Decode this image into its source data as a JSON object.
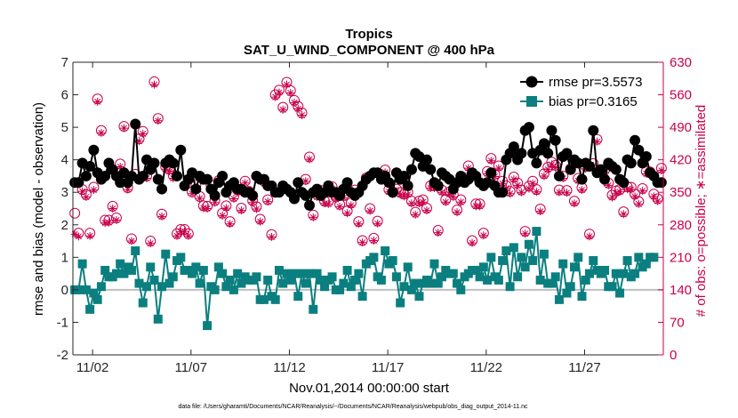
{
  "chart_data": {
    "type": "line",
    "title": "Tropics",
    "subtitle": "SAT_U_WIND_COMPONENT @ 400 hPa",
    "xlabel": "Nov.01,2014 00:00:00 start",
    "ylabel_left": "rmse and bias (model - observation)",
    "ylabel_right": "# of obs: o=possible; ∗=assimilated",
    "footnote": "data file: /Users/gharamti/Documents/NCAR/Reanalysis/~/Documents/NCAR/Reanalysis/webpub/obs_diag_output_2014-11.nc",
    "xlim": [
      1,
      31
    ],
    "ylim_left": [
      -2,
      7
    ],
    "ylim_right": [
      0,
      630
    ],
    "x_ticks": [
      2,
      7,
      12,
      17,
      22,
      27
    ],
    "x_tick_labels": [
      "11/02",
      "11/07",
      "11/12",
      "11/17",
      "11/22",
      "11/27"
    ],
    "y_ticks_left": [
      -2,
      -1,
      0,
      1,
      2,
      3,
      4,
      5,
      6,
      7
    ],
    "y_ticks_right": [
      0,
      70,
      140,
      210,
      280,
      350,
      420,
      490,
      560,
      630
    ],
    "grid": false,
    "legend_position": "top-right",
    "colors": {
      "rmse": "#000000",
      "bias": "#0b7f7f",
      "obs": "#c8004a",
      "zero_line": "#bfbfbf"
    },
    "series": [
      {
        "name": "rmse pr=3.5573",
        "marker": "circle",
        "axis": "left",
        "values": [
          3.3,
          3.3,
          3.9,
          3.5,
          3.8,
          4.3,
          3.6,
          3.4,
          3.5,
          3.9,
          3.7,
          3.5,
          3.3,
          3.6,
          3.3,
          3.5,
          5.1,
          3.4,
          3.5,
          4.0,
          3.7,
          3.9,
          3.4,
          3.1,
          3.9,
          4.0,
          3.9,
          3.5,
          4.3,
          3.2,
          3.4,
          3.6,
          3.1,
          3.5,
          3.4,
          3.4,
          3.1,
          2.9,
          3.3,
          3.5,
          3.0,
          3.2,
          3.3,
          3.1,
          3.1,
          3.0,
          3.0,
          2.9,
          3.5,
          3.4,
          3.4,
          3.2,
          3.2,
          3.0,
          3.0,
          3.2,
          3.1,
          3.0,
          2.8,
          3.3,
          3.0,
          2.9,
          2.6,
          3.0,
          3.1,
          2.9,
          3.0,
          3.2,
          3.0,
          3.0,
          2.9,
          3.1,
          3.3,
          3.0,
          2.9,
          3.0,
          3.2,
          3.4,
          3.5,
          3.6,
          3.6,
          3.4,
          3.5,
          3.3,
          3.0,
          3.6,
          3.4,
          3.5,
          3.2,
          3.7,
          4.2,
          4.1,
          3.8,
          4.0,
          3.7,
          3.3,
          3.2,
          3.6,
          3.5,
          3.4,
          3.1,
          3.3,
          3.5,
          3.3,
          3.4,
          3.6,
          3.5,
          3.3,
          3.2,
          3.3,
          3.6,
          3.2,
          3.0,
          3.0,
          4.0,
          4.2,
          4.4,
          4.0,
          4.2,
          4.9,
          5.0,
          4.2,
          3.9,
          4.3,
          4.5,
          4.2,
          4.9,
          4.6,
          3.5,
          4.1,
          4.2,
          3.7,
          4.0,
          3.9,
          3.4,
          3.9,
          3.8,
          4.9,
          3.6,
          3.7,
          3.4,
          3.9,
          3.8,
          3.7,
          3.4,
          3.3,
          4.0,
          3.9,
          4.6,
          4.3,
          3.9,
          4.1,
          3.6,
          3.5,
          3.3,
          3.3
        ]
      },
      {
        "name": "bias pr=0.3165",
        "marker": "square",
        "axis": "left",
        "values": [
          0.0,
          0.0,
          0.8,
          0.0,
          -0.6,
          -0.1,
          -0.3,
          0.1,
          0.6,
          0.4,
          0.4,
          0.5,
          0.8,
          0.5,
          0.7,
          0.6,
          1.2,
          0.2,
          -0.4,
          0.1,
          0.7,
          0.3,
          -0.9,
          0.1,
          1.1,
          0.2,
          0.4,
          0.9,
          1.0,
          0.6,
          0.6,
          0.5,
          0.7,
          0.2,
          0.6,
          -1.1,
          0.1,
          0.0,
          0.7,
          0.5,
          0.1,
          0.3,
          0.0,
          0.5,
          0.2,
          0.4,
          0.3,
          0.3,
          0.4,
          -0.3,
          -0.3,
          0.3,
          -0.2,
          -0.3,
          0.6,
          0.2,
          0.5,
          0.3,
          0.5,
          -0.2,
          0.5,
          0.2,
          0.5,
          -0.6,
          0.5,
          0.3,
          0.1,
          0.3,
          0.4,
          0.0,
          0.0,
          0.2,
          0.6,
          0.1,
          0.3,
          0.5,
          -0.2,
          0.8,
          0.9,
          1.0,
          0.4,
          0.3,
          1.2,
          0.8,
          0.9,
          0.4,
          -0.4,
          0.1,
          0.7,
          0.0,
          0.2,
          -0.2,
          0.2,
          0.3,
          0.2,
          0.8,
          0.2,
          0.4,
          0.6,
          0.5,
          0.5,
          0.2,
          0.0,
          0.4,
          0.5,
          0.6,
          0.6,
          0.4,
          0.7,
          0.3,
          1.0,
          0.4,
          0.3,
          0.9,
          1.2,
          0.1,
          1.3,
          0.4,
          1.0,
          0.7,
          1.4,
          0.9,
          1.8,
          0.3,
          1.1,
          0.2,
          0.2,
          0.4,
          -0.3,
          0.8,
          -0.1,
          0.1,
          0.7,
          1.0,
          -0.2,
          0.3,
          0.5,
          0.9,
          0.6,
          0.5,
          0.6,
          0.1,
          0.1,
          0.5,
          -0.1,
          0.5,
          0.9,
          0.4,
          0.5,
          1.0,
          0.7,
          0.8,
          1.0,
          1.0
        ]
      },
      {
        "name": "obs possible",
        "marker": "open-circle",
        "axis": "right",
        "values": [
          305,
          262,
          356,
          345,
          262,
          361,
          551,
          483,
          290,
          290,
          320,
          295,
          411,
          492,
          360,
          250,
          389,
          465,
          481,
          385,
          245,
          588,
          509,
          303,
          405,
          400,
          386,
          261,
          270,
          270,
          261,
          351,
          365,
          341,
          321,
          320,
          365,
          332,
          375,
          305,
          321,
          287,
          341,
          355,
          316,
          374,
          352,
          332,
          319,
          292,
          374,
          334,
          259,
          560,
          570,
          533,
          587,
          569,
          548,
          535,
          521,
          378,
          426,
          301,
          345,
          354,
          331,
          330,
          362,
          340,
          324,
          343,
          310,
          327,
          355,
          287,
          246,
          381,
          315,
          251,
          288,
          388,
          398,
          356,
          351,
          357,
          350,
          346,
          350,
          331,
          307,
          331,
          334,
          316,
          364,
          364,
          268,
          355,
          334,
          351,
          345,
          312,
          334,
          381,
          407,
          246,
          325,
          325,
          262,
          395,
          423,
          389,
          407,
          374,
          364,
          352,
          383,
          370,
          355,
          266,
          363,
          374,
          356,
          314,
          390,
          404,
          415,
          408,
          355,
          385,
          354,
          401,
          331,
          380,
          360,
          406,
          260,
          412,
          464,
          395,
          398,
          370,
          344,
          353,
          356,
          308,
          362,
          361,
          346,
          330,
          358,
          395,
          394,
          346,
          336,
          402
        ]
      },
      {
        "name": "obs assimilated",
        "marker": "asterisk",
        "axis": "right",
        "values": [
          260,
          255,
          352,
          340,
          256,
          355,
          545,
          478,
          284,
          285,
          315,
          290,
          405,
          488,
          356,
          245,
          384,
          460,
          476,
          380,
          240,
          582,
          504,
          298,
          400,
          395,
          380,
          256,
          265,
          266,
          256,
          347,
          360,
          337,
          316,
          315,
          360,
          328,
          370,
          300,
          316,
          282,
          336,
          350,
          311,
          370,
          347,
          328,
          314,
          287,
          369,
          330,
          254,
          555,
          565,
          528,
          582,
          564,
          543,
          530,
          516,
          374,
          421,
          296,
          340,
          349,
          326,
          325,
          358,
          335,
          319,
          338,
          305,
          322,
          350,
          282,
          242,
          376,
          310,
          246,
          283,
          384,
          393,
          351,
          346,
          352,
          345,
          341,
          345,
          326,
          302,
          326,
          329,
          311,
          359,
          359,
          263,
          350,
          329,
          346,
          340,
          307,
          329,
          376,
          402,
          241,
          320,
          320,
          257,
          390,
          418,
          384,
          402,
          369,
          359,
          347,
          378,
          365,
          350,
          261,
          358,
          369,
          351,
          309,
          385,
          399,
          410,
          403,
          350,
          380,
          349,
          396,
          326,
          375,
          355,
          401,
          255,
          407,
          459,
          390,
          393,
          365,
          339,
          348,
          351,
          303,
          357,
          356,
          341,
          325,
          353,
          390,
          389,
          341,
          331,
          397
        ]
      }
    ]
  }
}
